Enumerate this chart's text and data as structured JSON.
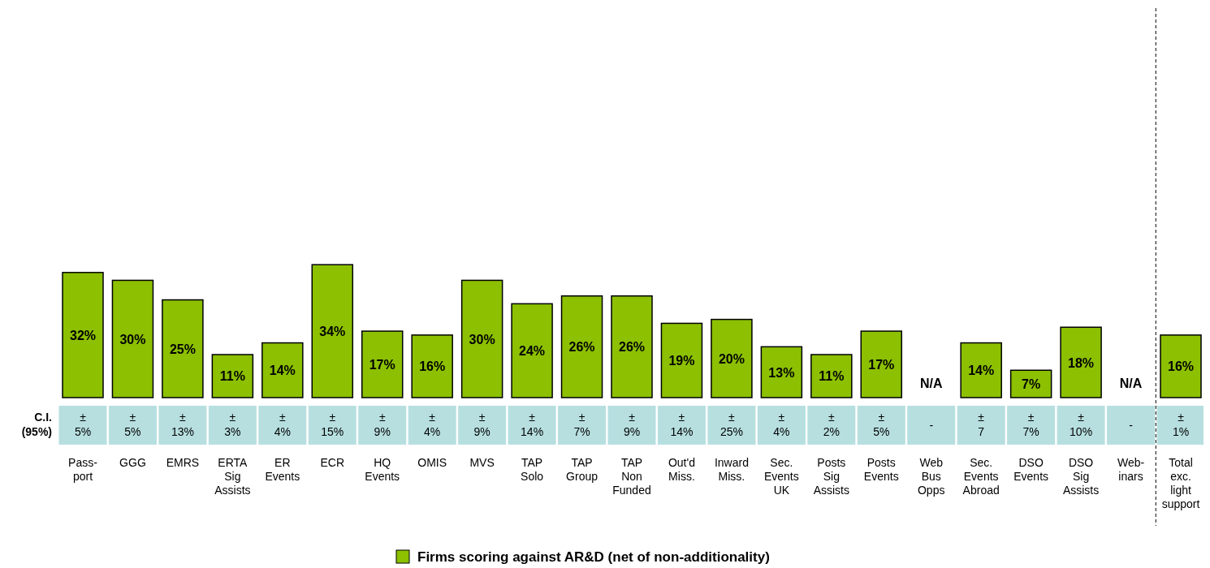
{
  "chart_data": {
    "type": "bar",
    "categories": [
      "Pass-\nport",
      "GGG",
      "EMRS",
      "ERTA\nSig\nAssists",
      "ER\nEvents",
      "ECR",
      "HQ\nEvents",
      "OMIS",
      "MVS",
      "TAP\nSolo",
      "TAP\nGroup",
      "TAP\nNon\nFunded",
      "Out'd\nMiss.",
      "Inward\nMiss.",
      "Sec.\nEvents\nUK",
      "Posts\nSig\nAssists",
      "Posts\nEvents",
      "Web\nBus\nOpps",
      "Sec.\nEvents\nAbroad",
      "DSO\nEvents",
      "DSO\nSig\nAssists",
      "Web-\ninars",
      "Total\nexc.\nlight\nsupport"
    ],
    "series": [
      {
        "name": "Firms scoring against AR&D (net of non-additionality)",
        "color": "#8cc000",
        "values": [
          32,
          30,
          25,
          11,
          14,
          34,
          17,
          16,
          30,
          24,
          26,
          26,
          19,
          20,
          13,
          11,
          17,
          null,
          14,
          7,
          18,
          null,
          16
        ],
        "value_labels": [
          "32%",
          "30%",
          "25%",
          "11%",
          "14%",
          "34%",
          "17%",
          "16%",
          "30%",
          "24%",
          "26%",
          "26%",
          "19%",
          "20%",
          "13%",
          "11%",
          "17%",
          "N/A",
          "14%",
          "7%",
          "18%",
          "N/A",
          "16%"
        ]
      }
    ],
    "relative": false,
    "annotations": [
      "C.I.\n(95%)",
      "±\n5%",
      "±\n5%",
      "±\n13%",
      "±\n3%",
      "±\n4%",
      "±\n15%",
      "±\n9%",
      "±\n4%",
      "±\n9%",
      "±\n14%",
      "±\n7%",
      "±\n9%",
      "±\n14%",
      "±\n25%",
      "±\n4%",
      "±\n2%",
      "±\n5%",
      "-",
      "±\n7",
      "±\n7%",
      "±\n10%",
      "-",
      "±\n1%"
    ],
    "legend": "bottom"
  }
}
